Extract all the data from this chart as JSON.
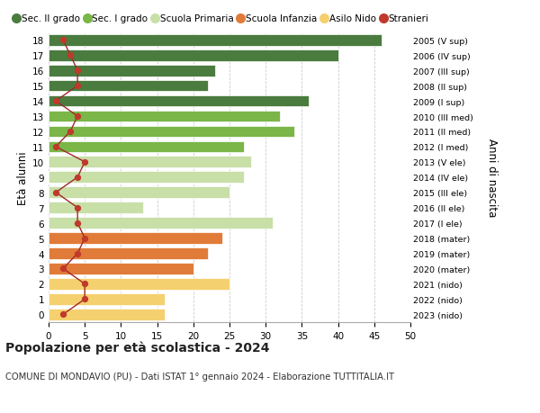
{
  "ages": [
    18,
    17,
    16,
    15,
    14,
    13,
    12,
    11,
    10,
    9,
    8,
    7,
    6,
    5,
    4,
    3,
    2,
    1,
    0
  ],
  "bar_values": [
    46,
    40,
    23,
    22,
    36,
    32,
    34,
    27,
    28,
    27,
    25,
    13,
    31,
    24,
    22,
    20,
    25,
    16,
    16
  ],
  "stranieri": [
    2,
    3,
    4,
    4,
    1,
    4,
    3,
    1,
    5,
    4,
    1,
    4,
    4,
    5,
    4,
    2,
    5,
    5,
    2
  ],
  "bar_colors": [
    "#4a7c3f",
    "#4a7c3f",
    "#4a7c3f",
    "#4a7c3f",
    "#4a7c3f",
    "#7ab648",
    "#7ab648",
    "#7ab648",
    "#c8dfa8",
    "#c8dfa8",
    "#c8dfa8",
    "#c8dfa8",
    "#c8dfa8",
    "#e07b39",
    "#e07b39",
    "#e07b39",
    "#f5d06e",
    "#f5d06e",
    "#f5d06e"
  ],
  "right_labels": [
    "2005 (V sup)",
    "2006 (IV sup)",
    "2007 (III sup)",
    "2008 (II sup)",
    "2009 (I sup)",
    "2010 (III med)",
    "2011 (II med)",
    "2012 (I med)",
    "2013 (V ele)",
    "2014 (IV ele)",
    "2015 (III ele)",
    "2016 (II ele)",
    "2017 (I ele)",
    "2018 (mater)",
    "2019 (mater)",
    "2020 (mater)",
    "2021 (nido)",
    "2022 (nido)",
    "2023 (nido)"
  ],
  "legend_labels": [
    "Sec. II grado",
    "Sec. I grado",
    "Scuola Primaria",
    "Scuola Infanzia",
    "Asilo Nido",
    "Stranieri"
  ],
  "legend_colors": [
    "#4a7c3f",
    "#7ab648",
    "#c8dfa8",
    "#e07b39",
    "#f5d06e",
    "#c0392b"
  ],
  "stranieri_color": "#c0392b",
  "stranieri_line_color": "#a0282a",
  "ylabel": "Età alunni",
  "right_ylabel": "Anni di nascita",
  "title": "Popolazione per età scolastica - 2024",
  "subtitle": "COMUNE DI MONDAVIO (PU) - Dati ISTAT 1° gennaio 2024 - Elaborazione TUTTITALIA.IT",
  "xlim": [
    0,
    50
  ],
  "xticks": [
    0,
    5,
    10,
    15,
    20,
    25,
    30,
    35,
    40,
    45,
    50
  ],
  "background_color": "#ffffff",
  "grid_color": "#cccccc",
  "bar_height": 0.75
}
